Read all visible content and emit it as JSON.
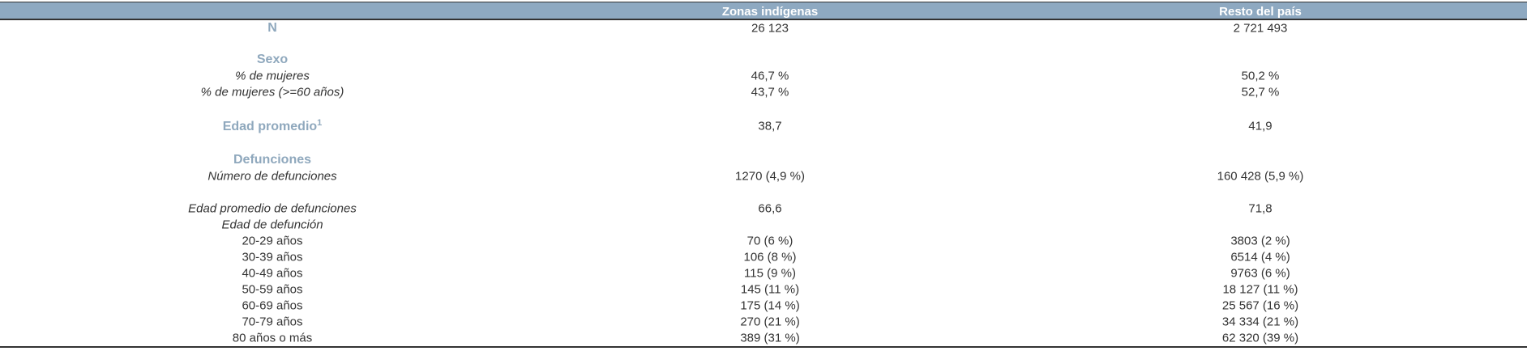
{
  "header": {
    "columns": [
      "Zonas indígenas",
      "Resto del país"
    ]
  },
  "table": {
    "rows": [
      {
        "label": "N",
        "values": [
          "26 123",
          "2 721 493"
        ]
      },
      {
        "label": "Sexo"
      },
      {
        "label": "% de mujeres",
        "values": [
          "46,7 %",
          "50,2 %"
        ]
      },
      {
        "label": "% de mujeres (>=60 años)",
        "values": [
          "43,7 %",
          "52,7 %"
        ]
      },
      {
        "label": "Edad promedio",
        "footnote": "1",
        "values": [
          "38,7",
          "41,9"
        ]
      },
      {
        "label": "Defunciones"
      },
      {
        "label": "Número de defunciones",
        "values": [
          "1270 (4,9 %)",
          "160 428 (5,9 %)"
        ]
      },
      {
        "label": "Edad promedio de defunciones",
        "values": [
          "66,6",
          "71,8"
        ]
      },
      {
        "label": "Edad de defunción"
      },
      {
        "label": "20-29 años",
        "values": [
          "70 (6 %)",
          "3803 (2 %)"
        ]
      },
      {
        "label": "30-39 años",
        "values": [
          "106 (8 %)",
          "6514 (4 %)"
        ]
      },
      {
        "label": "40-49 años",
        "values": [
          "115 (9 %)",
          "9763 (6 %)"
        ]
      },
      {
        "label": "50-59 años",
        "values": [
          "145 (11 %)",
          "18 127 (11 %)"
        ]
      },
      {
        "label": "60-69 años",
        "values": [
          "175 (14 %)",
          "25 567 (16 %)"
        ]
      },
      {
        "label": "70-79 años",
        "values": [
          "270 (21 %)",
          "34 334 (21 %)"
        ]
      },
      {
        "label": "80 años o más",
        "values": [
          "389 (31 %)",
          "62 320 (39 %)"
        ]
      }
    ]
  }
}
